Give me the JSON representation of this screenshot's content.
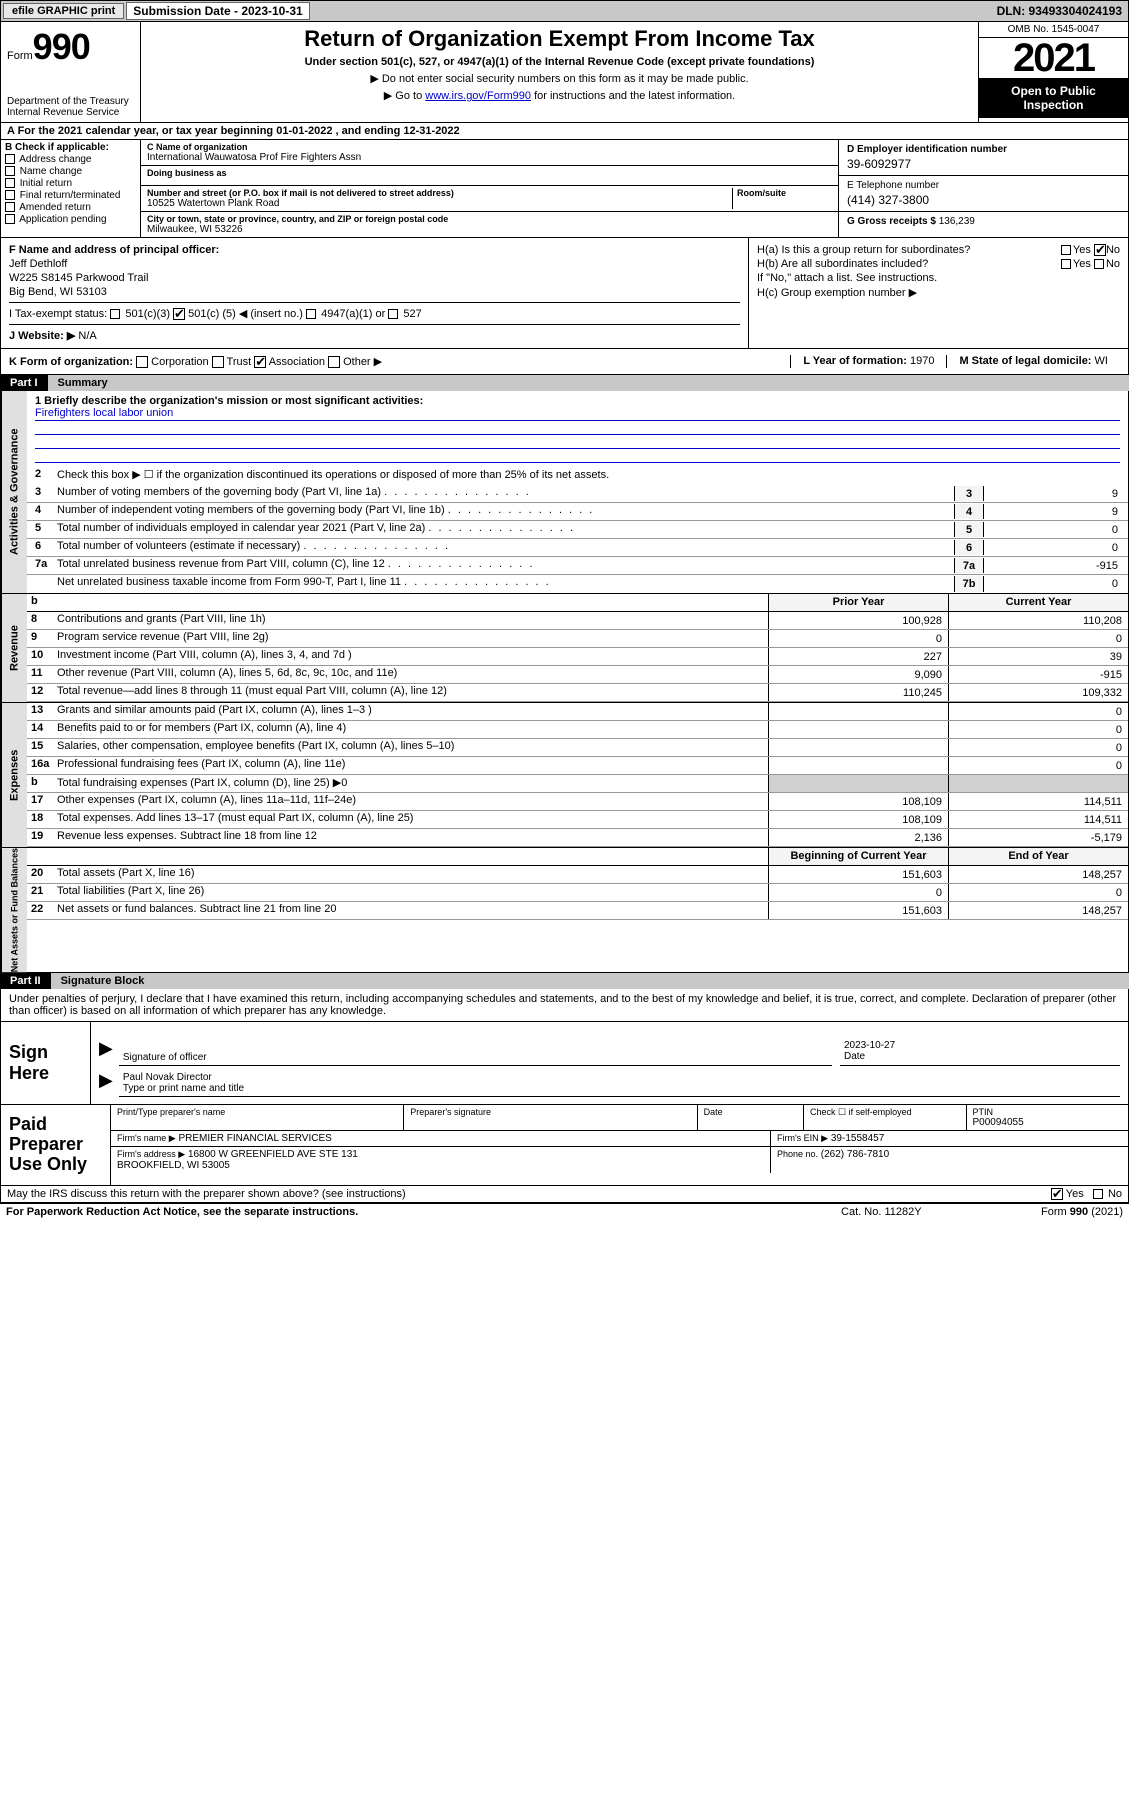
{
  "top_bar": {
    "efile_label": "efile GRAPHIC print",
    "submission_label": "Submission Date - 2023-10-31",
    "dln_label": "DLN: 93493304024193"
  },
  "header": {
    "form_label": "Form",
    "form_number": "990",
    "dept": "Department of the Treasury",
    "irs": "Internal Revenue Service",
    "title": "Return of Organization Exempt From Income Tax",
    "subtitle": "Under section 501(c), 527, or 4947(a)(1) of the Internal Revenue Code (except private foundations)",
    "note1": "▶ Do not enter social security numbers on this form as it may be made public.",
    "note2_pre": "▶ Go to ",
    "note2_link": "www.irs.gov/Form990",
    "note2_post": " for instructions and the latest information.",
    "omb": "OMB No. 1545-0047",
    "year": "2021",
    "open_public": "Open to Public Inspection"
  },
  "section_a": {
    "text_pre": "A For the 2021 calendar year, or tax year beginning ",
    "begin": "01-01-2022",
    "text_mid": " , and ending ",
    "end": "12-31-2022"
  },
  "section_b": {
    "label": "B Check if applicable:",
    "items": [
      "Address change",
      "Name change",
      "Initial return",
      "Final return/terminated",
      "Amended return",
      "Application pending"
    ]
  },
  "section_c": {
    "name_label": "C Name of organization",
    "name": "International Wauwatosa Prof Fire Fighters Assn",
    "dba_label": "Doing business as",
    "dba": "",
    "addr_label": "Number and street (or P.O. box if mail is not delivered to street address)",
    "room_label": "Room/suite",
    "addr": "10525 Watertown Plank Road",
    "city_label": "City or town, state or province, country, and ZIP or foreign postal code",
    "city": "Milwaukee, WI  53226"
  },
  "section_d": {
    "ein_label": "D Employer identification number",
    "ein": "39-6092977",
    "phone_label": "E Telephone number",
    "phone": "(414) 327-3800",
    "gross_label": "G Gross receipts $",
    "gross": "136,239"
  },
  "section_f": {
    "label": "F Name and address of principal officer:",
    "name": "Jeff Dethloff",
    "addr1": "W225 S8145 Parkwood Trail",
    "addr2": "Big Bend, WI  53103"
  },
  "section_h": {
    "ha": "H(a) Is this a group return for subordinates?",
    "hb": "H(b) Are all subordinates included?",
    "hb_note": "If \"No,\" attach a list. See instructions.",
    "hc": "H(c) Group exemption number ▶"
  },
  "section_i": {
    "label": "I    Tax-exempt status:",
    "opt1": "501(c)(3)",
    "opt2_pre": "501(c) (",
    "opt2_num": "5",
    "opt2_post": ") ◀ (insert no.)",
    "opt3": "4947(a)(1) or",
    "opt4": "527"
  },
  "section_j": {
    "label": "J   Website: ▶",
    "value": "N/A"
  },
  "section_k": {
    "label": "K Form of organization:",
    "opts": [
      "Corporation",
      "Trust",
      "Association",
      "Other ▶"
    ],
    "checked_idx": 2,
    "l_label": "L Year of formation:",
    "l_val": "1970",
    "m_label": "M State of legal domicile:",
    "m_val": "WI"
  },
  "part1": {
    "num": "Part I",
    "title": "Summary",
    "q1_label": "1  Briefly describe the organization's mission or most significant activities:",
    "q1_text": "Firefighters local labor union",
    "q2": "Check this box ▶ ☐  if the organization discontinued its operations or disposed of more than 25% of its net assets.",
    "lines_single": [
      {
        "n": "3",
        "d": "Number of voting members of the governing body (Part VI, line 1a)",
        "cn": "3",
        "v": "9"
      },
      {
        "n": "4",
        "d": "Number of independent voting members of the governing body (Part VI, line 1b)",
        "cn": "4",
        "v": "9"
      },
      {
        "n": "5",
        "d": "Total number of individuals employed in calendar year 2021 (Part V, line 2a)",
        "cn": "5",
        "v": "0"
      },
      {
        "n": "6",
        "d": "Total number of volunteers (estimate if necessary)",
        "cn": "6",
        "v": "0"
      },
      {
        "n": "7a",
        "d": "Total unrelated business revenue from Part VIII, column (C), line 12",
        "cn": "7a",
        "v": "-915"
      },
      {
        "n": "",
        "d": "Net unrelated business taxable income from Form 990-T, Part I, line 11",
        "cn": "7b",
        "v": "0"
      }
    ],
    "col_headers": {
      "prior": "Prior Year",
      "current": "Current Year"
    },
    "revenue": [
      {
        "n": "8",
        "d": "Contributions and grants (Part VIII, line 1h)",
        "p": "100,928",
        "c": "110,208"
      },
      {
        "n": "9",
        "d": "Program service revenue (Part VIII, line 2g)",
        "p": "0",
        "c": "0"
      },
      {
        "n": "10",
        "d": "Investment income (Part VIII, column (A), lines 3, 4, and 7d )",
        "p": "227",
        "c": "39"
      },
      {
        "n": "11",
        "d": "Other revenue (Part VIII, column (A), lines 5, 6d, 8c, 9c, 10c, and 11e)",
        "p": "9,090",
        "c": "-915"
      },
      {
        "n": "12",
        "d": "Total revenue—add lines 8 through 11 (must equal Part VIII, column (A), line 12)",
        "p": "110,245",
        "c": "109,332"
      }
    ],
    "expenses": [
      {
        "n": "13",
        "d": "Grants and similar amounts paid (Part IX, column (A), lines 1–3 )",
        "p": "",
        "c": "0"
      },
      {
        "n": "14",
        "d": "Benefits paid to or for members (Part IX, column (A), line 4)",
        "p": "",
        "c": "0"
      },
      {
        "n": "15",
        "d": "Salaries, other compensation, employee benefits (Part IX, column (A), lines 5–10)",
        "p": "",
        "c": "0"
      },
      {
        "n": "16a",
        "d": "Professional fundraising fees (Part IX, column (A), line 11e)",
        "p": "",
        "c": "0"
      },
      {
        "n": "b",
        "d": "Total fundraising expenses (Part IX, column (D), line 25) ▶0",
        "p": "shade",
        "c": "shade"
      },
      {
        "n": "17",
        "d": "Other expenses (Part IX, column (A), lines 11a–11d, 11f–24e)",
        "p": "108,109",
        "c": "114,511"
      },
      {
        "n": "18",
        "d": "Total expenses. Add lines 13–17 (must equal Part IX, column (A), line 25)",
        "p": "108,109",
        "c": "114,511"
      },
      {
        "n": "19",
        "d": "Revenue less expenses. Subtract line 18 from line 12",
        "p": "2,136",
        "c": "-5,179"
      }
    ],
    "net_headers": {
      "begin": "Beginning of Current Year",
      "end": "End of Year"
    },
    "net": [
      {
        "n": "20",
        "d": "Total assets (Part X, line 16)",
        "p": "151,603",
        "c": "148,257"
      },
      {
        "n": "21",
        "d": "Total liabilities (Part X, line 26)",
        "p": "0",
        "c": "0"
      },
      {
        "n": "22",
        "d": "Net assets or fund balances. Subtract line 21 from line 20",
        "p": "151,603",
        "c": "148,257"
      }
    ]
  },
  "part2": {
    "num": "Part II",
    "title": "Signature Block",
    "intro": "Under penalties of perjury, I declare that I have examined this return, including accompanying schedules and statements, and to the best of my knowledge and belief, it is true, correct, and complete. Declaration of preparer (other than officer) is based on all information of which preparer has any knowledge."
  },
  "sign": {
    "label": "Sign Here",
    "sig_label": "Signature of officer",
    "date_label": "Date",
    "date_val": "2023-10-27",
    "name": "Paul Novak  Director",
    "name_label": "Type or print name and title"
  },
  "paid": {
    "label": "Paid Preparer Use Only",
    "r1": {
      "c1": "Print/Type preparer's name",
      "c2": "Preparer's signature",
      "c3": "Date",
      "c4_lbl": "Check ☐ if self-employed",
      "c5_lbl": "PTIN",
      "c5": "P00094055"
    },
    "r2": {
      "lbl": "Firm's name   ▶",
      "val": "PREMIER FINANCIAL SERVICES",
      "ein_lbl": "Firm's EIN ▶",
      "ein": "39-1558457"
    },
    "r3": {
      "lbl": "Firm's address ▶",
      "val1": "16800 W GREENFIELD AVE STE 131",
      "val2": "BROOKFIELD, WI  53005",
      "ph_lbl": "Phone no.",
      "ph": "(262) 786-7810"
    }
  },
  "discuss": {
    "text": "May the IRS discuss this return with the preparer shown above? (see instructions)",
    "yes": "Yes",
    "no": "No"
  },
  "footer": {
    "left": "For Paperwork Reduction Act Notice, see the separate instructions.",
    "mid": "Cat. No. 11282Y",
    "right": "Form 990 (2021)"
  },
  "side_labels": {
    "activities": "Activities & Governance",
    "revenue": "Revenue",
    "expenses": "Expenses",
    "net": "Net Assets or Fund Balances"
  },
  "yes": "Yes",
  "no": "No"
}
